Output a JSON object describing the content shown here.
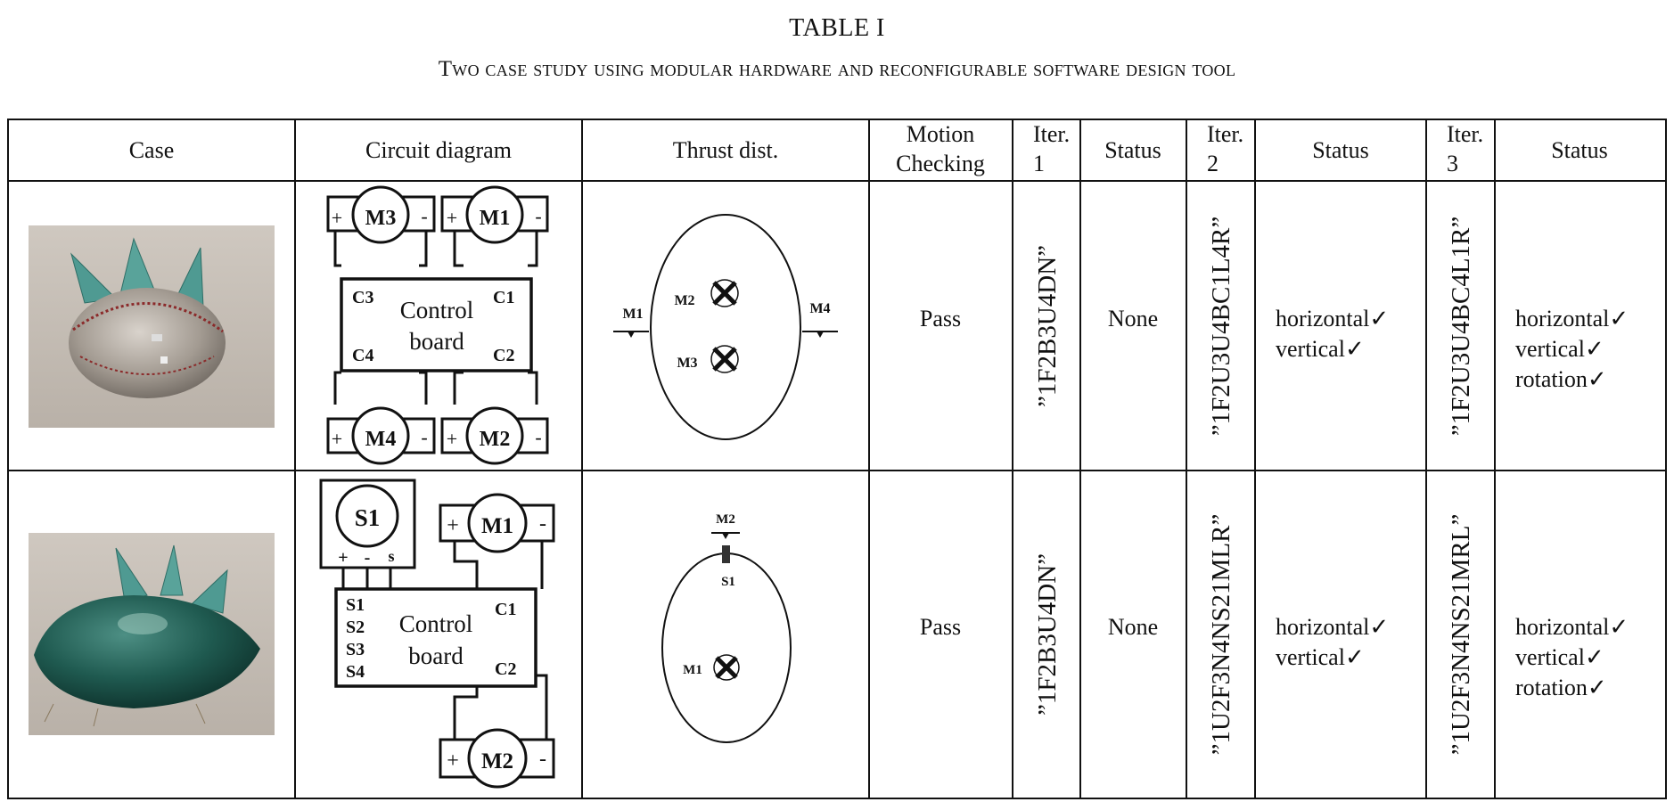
{
  "table_label": "TABLE I",
  "caption": "Two case study using modular hardware and reconfigurable software design tool",
  "columns": [
    "Case",
    "Circuit diagram",
    "Thrust dist.",
    "Motion Checking",
    "Iter. 1",
    "Status",
    "Iter. 2",
    "Status",
    "Iter. 3",
    "Status"
  ],
  "header_lines": {
    "motion": [
      "Motion",
      "Checking"
    ],
    "iter1": [
      "Iter.",
      "1"
    ],
    "iter2": [
      "Iter.",
      "2"
    ],
    "iter3": [
      "Iter.",
      "3"
    ]
  },
  "rows": [
    {
      "case_photo": "round baseball-style blimp with three teal fins",
      "circuit": {
        "motors": [
          "M3",
          "M1",
          "M4",
          "M2"
        ],
        "board": [
          "Control",
          "board"
        ],
        "ports": [
          "C3",
          "C1",
          "C4",
          "C2"
        ],
        "plus": "+",
        "minus": "-"
      },
      "thrust": {
        "side_labels": [
          "M1",
          "M4"
        ],
        "inner_labels": [
          "M2",
          "M3"
        ]
      },
      "motion_checking": "Pass",
      "iter1": "”1F2B3U4DN”",
      "status1": "None",
      "iter2": "”1F2U3U4BC1L4R”",
      "status2": [
        "horizontal✓",
        "vertical✓"
      ],
      "iter3": "”1F2U3U4BC4L1R”",
      "status3": [
        "horizontal✓",
        "vertical✓",
        "rotation✓"
      ]
    },
    {
      "case_photo": "green fish-shaped blimp with three teal fins",
      "circuit": {
        "servo": "S1",
        "servo_pins": [
          "+",
          "-",
          "s"
        ],
        "motors": [
          "M1",
          "M2"
        ],
        "board": [
          "Control",
          "board"
        ],
        "ports_left": [
          "S1",
          "S2",
          "S3",
          "S4"
        ],
        "ports_right": [
          "C1",
          "C2"
        ],
        "plus": "+",
        "minus": "-"
      },
      "thrust": {
        "top_label": "M2",
        "servo_label": "S1",
        "inner_label": "M1"
      },
      "motion_checking": "Pass",
      "iter1": "”1F2B3U4DN”",
      "status1": "None",
      "iter2": "”1U2F3N4NS21MLR”",
      "status2": [
        "horizontal✓",
        "vertical✓"
      ],
      "iter3": "”1U2F3N4NS21MRL”",
      "status3": [
        "horizontal✓",
        "vertical✓",
        "rotation✓"
      ]
    }
  ]
}
